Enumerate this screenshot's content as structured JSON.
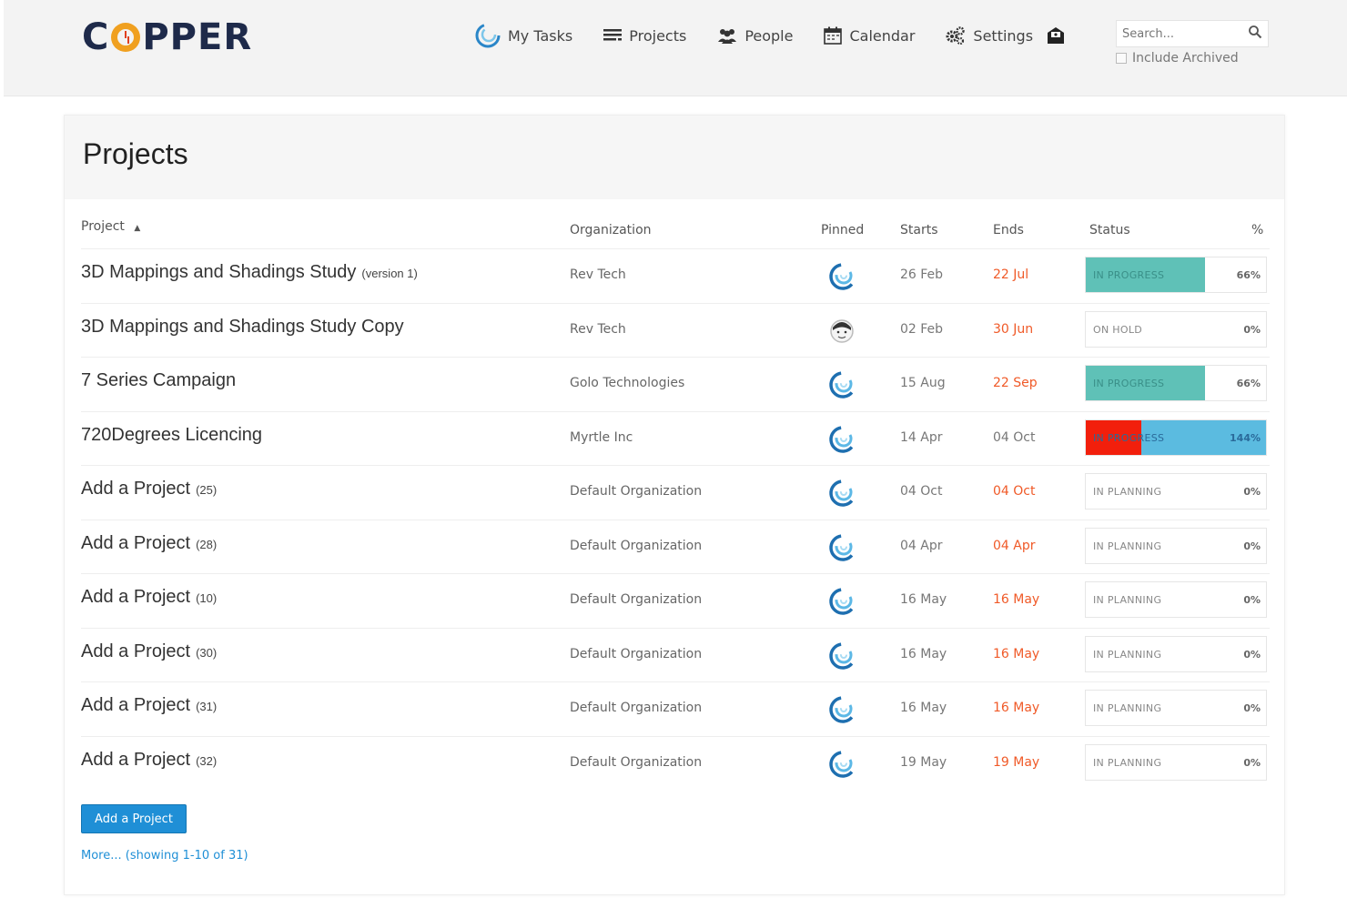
{
  "app": {
    "logo_text": "COPPER"
  },
  "nav": {
    "my_tasks": "My Tasks",
    "projects": "Projects",
    "people": "People",
    "calendar": "Calendar",
    "settings": "Settings"
  },
  "search": {
    "placeholder": "Search...",
    "include_archived": "Include Archived"
  },
  "page": {
    "title": "Projects"
  },
  "table": {
    "headers": {
      "project": "Project",
      "organization": "Organization",
      "pinned": "Pinned",
      "starts": "Starts",
      "ends": "Ends",
      "status": "Status",
      "percent": "%"
    },
    "rows": [
      {
        "name": "3D Mappings and Shadings Study",
        "suffix": "(version 1)",
        "org": "Rev Tech",
        "pinned_icon": "copper-spiral-icon",
        "starts": "26 Feb",
        "ends": "22 Jul",
        "ends_late": true,
        "status": "IN PROGRESS",
        "percent": "66%",
        "progress": 0.66,
        "kind": "progress"
      },
      {
        "name": "3D Mappings and Shadings Study Copy",
        "suffix": "",
        "org": "Rev Tech",
        "pinned_icon": "user-avatar-icon",
        "starts": "02 Feb",
        "ends": "30 Jun",
        "ends_late": true,
        "status": "ON HOLD",
        "percent": "0%",
        "progress": 0,
        "kind": "plain"
      },
      {
        "name": "7 Series Campaign",
        "suffix": "",
        "org": "Golo Technologies",
        "pinned_icon": "copper-spiral-icon",
        "starts": "15 Aug",
        "ends": "22 Sep",
        "ends_late": true,
        "status": "IN PROGRESS",
        "percent": "66%",
        "progress": 0.66,
        "kind": "progress"
      },
      {
        "name": "720Degrees Licencing",
        "suffix": "",
        "org": "Myrtle Inc",
        "pinned_icon": "copper-spiral-icon",
        "starts": "14 Apr",
        "ends": "04 Oct",
        "ends_late": false,
        "status": "IN PROGRESS",
        "percent": "144%",
        "progress": 1.44,
        "kind": "over"
      },
      {
        "name": "Add a Project",
        "suffix": "(25)",
        "org": "Default Organization",
        "pinned_icon": "copper-spiral-icon",
        "starts": "04 Oct",
        "ends": "04 Oct",
        "ends_late": true,
        "status": "IN PLANNING",
        "percent": "0%",
        "progress": 0,
        "kind": "plain"
      },
      {
        "name": "Add a Project",
        "suffix": "(28)",
        "org": "Default Organization",
        "pinned_icon": "copper-spiral-icon",
        "starts": "04 Apr",
        "ends": "04 Apr",
        "ends_late": true,
        "status": "IN PLANNING",
        "percent": "0%",
        "progress": 0,
        "kind": "plain"
      },
      {
        "name": "Add a Project",
        "suffix": "(10)",
        "org": "Default Organization",
        "pinned_icon": "copper-spiral-icon",
        "starts": "16 May",
        "ends": "16 May",
        "ends_late": true,
        "status": "IN PLANNING",
        "percent": "0%",
        "progress": 0,
        "kind": "plain"
      },
      {
        "name": "Add a Project",
        "suffix": "(30)",
        "org": "Default Organization",
        "pinned_icon": "copper-spiral-icon",
        "starts": "16 May",
        "ends": "16 May",
        "ends_late": true,
        "status": "IN PLANNING",
        "percent": "0%",
        "progress": 0,
        "kind": "plain"
      },
      {
        "name": "Add a Project",
        "suffix": "(31)",
        "org": "Default Organization",
        "pinned_icon": "copper-spiral-icon",
        "starts": "16 May",
        "ends": "16 May",
        "ends_late": true,
        "status": "IN PLANNING",
        "percent": "0%",
        "progress": 0,
        "kind": "plain"
      },
      {
        "name": "Add a Project",
        "suffix": "(32)",
        "org": "Default Organization",
        "pinned_icon": "copper-spiral-icon",
        "starts": "19 May",
        "ends": "19 May",
        "ends_late": true,
        "status": "IN PLANNING",
        "percent": "0%",
        "progress": 0,
        "kind": "plain"
      }
    ]
  },
  "footer": {
    "add_button": "Add a Project",
    "more_link": "More... (showing 1-10 of 31)"
  },
  "colors": {
    "progress_fill": "#5fc1b7",
    "over_fill": "#5bbbe0",
    "overdue_fill": "#f21f0c",
    "late_date": "#f05a28",
    "button": "#1f8fd6"
  }
}
